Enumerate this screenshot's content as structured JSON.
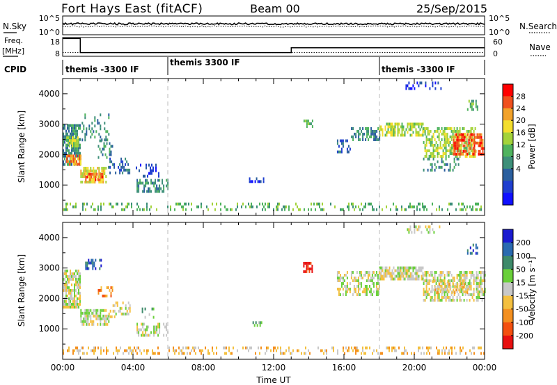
{
  "header": {
    "station": "Fort Hays East (fitACF)",
    "beam": "Beam 00",
    "date": "25/Sep/2015"
  },
  "left_labels": {
    "nsky": "N.Sky",
    "freq_line1": "Freq.",
    "freq_line2": "[MHz]",
    "cpid": "CPID"
  },
  "right_labels": {
    "nsearch": "N.Search",
    "nave": "Nave"
  },
  "chart_data": [
    {
      "type": "line",
      "panel": "noise",
      "ylabel": "N.Sky",
      "y_ticks": [
        "10^5",
        "10^0"
      ],
      "y2label": "N.Search",
      "y2_ticks": [
        "10^5",
        "10^0"
      ],
      "series": [
        {
          "name": "N.Sky",
          "style": "solid",
          "level": "approximately constant near the top of the panel"
        },
        {
          "name": "N.Search",
          "style": "dotted",
          "level": "approximately constant just below N.Sky"
        }
      ]
    },
    {
      "type": "line",
      "panel": "frequency",
      "ylabel": "Freq. [MHz]",
      "y_ticks": [
        18,
        8
      ],
      "ylim": [
        8,
        18
      ],
      "y2label": "Nave",
      "y2_ticks": [
        60,
        0
      ],
      "y2lim": [
        0,
        60
      ],
      "freq_steps": [
        {
          "t0": 0.0,
          "t1": 1.0,
          "mhz": 17.5
        },
        {
          "t0": 1.0,
          "t1": 13.0,
          "mhz": 10.0
        },
        {
          "t0": 13.0,
          "t1": 24.0,
          "mhz": 12.5
        }
      ],
      "nave_level": 12
    },
    {
      "type": "table",
      "panel": "cpid",
      "segments": [
        {
          "t0": 0,
          "t1": 6,
          "label": "themis -3300 IF"
        },
        {
          "t0": 6,
          "t1": 18,
          "label": "themis 3300 IF"
        },
        {
          "t0": 18,
          "t1": 24,
          "label": "themis -3300 IF"
        }
      ]
    },
    {
      "type": "heatmap",
      "panel": "power",
      "xlabel": "",
      "ylabel": "Slant Range [km]",
      "xlim": [
        0,
        24
      ],
      "ylim": [
        0,
        4500
      ],
      "y_ticks": [
        1000,
        2000,
        3000,
        4000
      ],
      "colorbar_label": "Power [dB]",
      "colorbar_ticks": [
        "28",
        "24",
        "20",
        "16",
        "12",
        "8",
        "4"
      ],
      "colorbar_colors": [
        "#ff0000",
        "#f0501e",
        "#f2a22a",
        "#f4de2d",
        "#a4d33a",
        "#4fb35e",
        "#3d8f79",
        "#2b5f9e",
        "#1f3fcf",
        "#1010ff"
      ],
      "regions": [
        {
          "t0": 0.0,
          "t1": 1.0,
          "r0": 1650,
          "r1": 3000,
          "level": 6,
          "density": 0.75
        },
        {
          "t0": 0.2,
          "t1": 1.0,
          "r0": 1700,
          "r1": 2000,
          "level": 2,
          "density": 0.8
        },
        {
          "t0": 0.2,
          "t1": 0.9,
          "r0": 2300,
          "r1": 2600,
          "level": 4,
          "density": 0.7
        },
        {
          "t0": 1.0,
          "t1": 2.5,
          "r0": 1100,
          "r1": 1600,
          "level": 3,
          "density": 0.7
        },
        {
          "t0": 1.2,
          "t1": 2.3,
          "r0": 1200,
          "r1": 1400,
          "level": 1,
          "density": 0.7
        },
        {
          "t0": 1.0,
          "t1": 2.6,
          "r0": 2500,
          "r1": 3350,
          "level": 6,
          "density": 0.25
        },
        {
          "t0": 2.0,
          "t1": 2.8,
          "r0": 1900,
          "r1": 2500,
          "level": 6,
          "density": 0.35
        },
        {
          "t0": 2.5,
          "t1": 3.8,
          "r0": 1400,
          "r1": 1900,
          "level": 7,
          "density": 0.35
        },
        {
          "t0": 4.2,
          "t1": 6.0,
          "r0": 750,
          "r1": 1200,
          "level": 6,
          "density": 0.45
        },
        {
          "t0": 4.0,
          "t1": 5.5,
          "r0": 1300,
          "r1": 1700,
          "level": 8,
          "density": 0.35
        },
        {
          "t0": 10.6,
          "t1": 11.4,
          "r0": 1150,
          "r1": 1250,
          "level": 8,
          "density": 0.45
        },
        {
          "t0": 13.7,
          "t1": 14.2,
          "r0": 2900,
          "r1": 3150,
          "level": 5,
          "density": 0.6
        },
        {
          "t0": 15.6,
          "t1": 16.4,
          "r0": 2100,
          "r1": 2500,
          "level": 7,
          "density": 0.4
        },
        {
          "t0": 16.4,
          "t1": 18.0,
          "r0": 2450,
          "r1": 2900,
          "level": 6,
          "density": 0.55
        },
        {
          "t0": 18.0,
          "t1": 20.5,
          "r0": 2650,
          "r1": 3050,
          "level": 4,
          "density": 0.65
        },
        {
          "t0": 20.5,
          "t1": 23.5,
          "r0": 1950,
          "r1": 2900,
          "level": 4,
          "density": 0.55
        },
        {
          "t0": 22.2,
          "t1": 24.0,
          "r0": 2000,
          "r1": 2700,
          "level": 1,
          "density": 0.65
        },
        {
          "t0": 20.5,
          "t1": 22.5,
          "r0": 1500,
          "r1": 1900,
          "level": 6,
          "density": 0.3
        },
        {
          "t0": 19.5,
          "t1": 21.5,
          "r0": 4200,
          "r1": 4400,
          "level": 8,
          "density": 0.25
        },
        {
          "t0": 23.0,
          "t1": 23.6,
          "r0": 3500,
          "r1": 3800,
          "level": 5,
          "density": 0.4
        },
        {
          "t0": 0.0,
          "t1": 24.0,
          "r0": 180,
          "r1": 420,
          "level": 5,
          "density": 0.28
        }
      ]
    },
    {
      "type": "heatmap",
      "panel": "velocity",
      "xlabel": "Time UT",
      "ylabel": "Slant Range [km]",
      "xlim": [
        0,
        24
      ],
      "ylim": [
        0,
        4500
      ],
      "x_ticks": [
        "00:00",
        "04:00",
        "08:00",
        "12:00",
        "16:00",
        "20:00",
        "00:00"
      ],
      "y_ticks": [
        1000,
        2000,
        3000,
        4000
      ],
      "colorbar_label": "Velocity [m s⁻¹]",
      "colorbar_ticks": [
        "200",
        "100",
        "50",
        "15",
        "-15",
        "-50",
        "-100",
        "-200"
      ],
      "colorbar_colors": [
        "#1a1ad0",
        "#2a6ab0",
        "#3e8a6a",
        "#6ad03a",
        "#c8c8c8",
        "#f4c040",
        "#f49020",
        "#f45010",
        "#e81010"
      ],
      "regions": [
        {
          "t0": 0.0,
          "t1": 1.0,
          "r0": 1700,
          "r1": 2950,
          "level": 4,
          "density": 0.75
        },
        {
          "t0": 1.0,
          "t1": 2.6,
          "r0": 1150,
          "r1": 1650,
          "level": 4,
          "density": 0.7
        },
        {
          "t0": 1.2,
          "t1": 2.2,
          "r0": 2950,
          "r1": 3300,
          "level": 1,
          "density": 0.55
        },
        {
          "t0": 2.0,
          "t1": 2.8,
          "r0": 2100,
          "r1": 2400,
          "level": 6,
          "density": 0.5
        },
        {
          "t0": 2.6,
          "t1": 3.8,
          "r0": 1400,
          "r1": 1900,
          "level": 4,
          "density": 0.35
        },
        {
          "t0": 4.2,
          "t1": 6.0,
          "r0": 750,
          "r1": 1200,
          "level": 4,
          "density": 0.45
        },
        {
          "t0": 4.5,
          "t1": 5.2,
          "r0": 1400,
          "r1": 1700,
          "level": 3,
          "density": 0.35
        },
        {
          "t0": 10.8,
          "t1": 11.3,
          "r0": 1150,
          "r1": 1250,
          "level": 3,
          "density": 0.45
        },
        {
          "t0": 13.6,
          "t1": 14.2,
          "r0": 2850,
          "r1": 3200,
          "level": 8,
          "density": 0.6
        },
        {
          "t0": 15.6,
          "t1": 18.0,
          "r0": 2100,
          "r1": 2900,
          "level": 4,
          "density": 0.5
        },
        {
          "t0": 18.0,
          "t1": 20.5,
          "r0": 2600,
          "r1": 3050,
          "level": 4,
          "density": 0.7
        },
        {
          "t0": 20.5,
          "t1": 24.0,
          "r0": 1950,
          "r1": 2900,
          "level": 4,
          "density": 0.6
        },
        {
          "t0": 21.0,
          "t1": 23.0,
          "r0": 2200,
          "r1": 2600,
          "level": 5,
          "density": 0.3
        },
        {
          "t0": 19.5,
          "t1": 21.5,
          "r0": 4200,
          "r1": 4400,
          "level": 4,
          "density": 0.3
        },
        {
          "t0": 23.0,
          "t1": 23.6,
          "r0": 3500,
          "r1": 3800,
          "level": 1,
          "density": 0.4
        },
        {
          "t0": 0.0,
          "t1": 24.0,
          "r0": 180,
          "r1": 420,
          "level": 5,
          "density": 0.3
        }
      ]
    }
  ]
}
